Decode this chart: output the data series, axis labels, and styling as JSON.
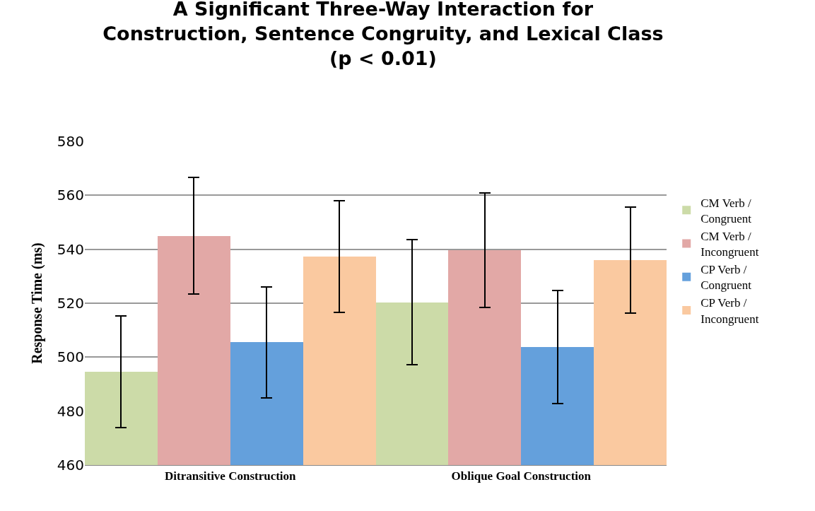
{
  "chart_data": {
    "type": "bar",
    "title": "A Significant Three-Way Interaction for\nConstruction, Sentence Congruity, and Lexical Class\n(p < 0.01)",
    "ylabel": "Response Time (ms)",
    "categories": [
      "Ditransitive Construction",
      "Oblique Goal Construction"
    ],
    "series": [
      {
        "name": "CM Verb / Congruent",
        "color": "#ccdba8",
        "values": [
          494.5,
          520.3
        ],
        "errors": [
          20.7,
          23.2
        ]
      },
      {
        "name": "CM Verb / Incongruent",
        "color": "#e2a8a6",
        "values": [
          545.0,
          539.6
        ],
        "errors": [
          21.7,
          21.3
        ]
      },
      {
        "name": "CP Verb / Congruent",
        "color": "#64a0dc",
        "values": [
          505.5,
          503.7
        ],
        "errors": [
          20.5,
          21.0
        ]
      },
      {
        "name": "CP Verb / Incongruent",
        "color": "#fac9a0",
        "values": [
          537.4,
          536.0
        ],
        "errors": [
          20.7,
          19.6
        ]
      }
    ],
    "ylim": [
      460,
      580
    ],
    "yticks": [
      460,
      480,
      500,
      520,
      540,
      560,
      580
    ],
    "grid": "y",
    "legend": "right"
  }
}
